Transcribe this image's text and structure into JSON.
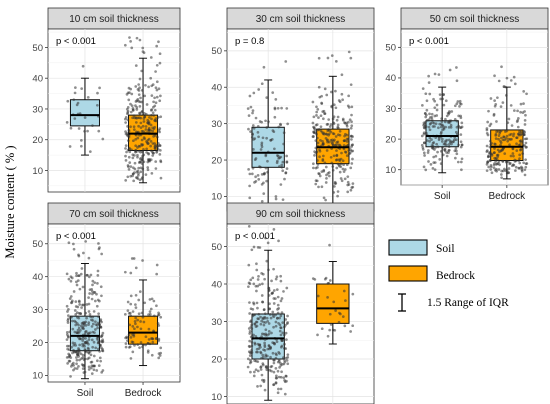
{
  "chart_data": {
    "type": "box",
    "ylabel": "Moisture content ( % )",
    "legend": [
      {
        "label": "Soil",
        "color": "#add8e6"
      },
      {
        "label": "Bedrock",
        "color": "#ffa500"
      },
      {
        "label": "1.5 Range of IQR",
        "symbol": "errorbar"
      }
    ],
    "categories": [
      "Soil",
      "Bedrock"
    ],
    "colors": {
      "Soil": "#add8e6",
      "Bedrock": "#ffa500",
      "strip": "#d9d9d9",
      "point": "#333333"
    },
    "panels": [
      {
        "title": "10 cm soil thickness",
        "pvalue": "p < 0.001",
        "ylim": [
          3,
          56
        ],
        "yticks": [
          10,
          20,
          30,
          40,
          50
        ],
        "show_xlabels": false,
        "boxes": [
          {
            "group": "Soil",
            "lower_whisker": 15,
            "q1": 24.5,
            "median": 28,
            "q3": 33,
            "upper_whisker": 40,
            "n_points": 30
          },
          {
            "group": "Bedrock",
            "lower_whisker": 6,
            "q1": 16.5,
            "median": 22,
            "q3": 28,
            "upper_whisker": 46.5,
            "n_points": 300
          }
        ]
      },
      {
        "title": "30 cm soil thickness",
        "pvalue": "p = 0.8",
        "ylim": [
          6,
          56
        ],
        "yticks": [
          10,
          20,
          30,
          40,
          50
        ],
        "show_xlabels": false,
        "boxes": [
          {
            "group": "Soil",
            "lower_whisker": 8,
            "q1": 18,
            "median": 22,
            "q3": 29,
            "upper_whisker": 42,
            "n_points": 110
          },
          {
            "group": "Bedrock",
            "lower_whisker": 8,
            "q1": 19,
            "median": 23.5,
            "q3": 28.5,
            "upper_whisker": 43,
            "n_points": 260
          }
        ]
      },
      {
        "title": "50 cm soil thickness",
        "pvalue": "p < 0.001",
        "ylim": [
          5,
          56
        ],
        "yticks": [
          10,
          20,
          30,
          40,
          50
        ],
        "show_xlabels": true,
        "boxes": [
          {
            "group": "Soil",
            "lower_whisker": 9,
            "q1": 17.5,
            "median": 21,
            "q3": 26,
            "upper_whisker": 37,
            "n_points": 200
          },
          {
            "group": "Bedrock",
            "lower_whisker": 7,
            "q1": 13,
            "median": 17.5,
            "q3": 23,
            "upper_whisker": 37,
            "n_points": 220
          }
        ]
      },
      {
        "title": "70 cm soil thickness",
        "pvalue": "p < 0.001",
        "ylim": [
          8,
          56
        ],
        "yticks": [
          10,
          20,
          30,
          40,
          50
        ],
        "show_xlabels": true,
        "boxes": [
          {
            "group": "Soil",
            "lower_whisker": 9,
            "q1": 17.5,
            "median": 22,
            "q3": 28,
            "upper_whisker": 44,
            "n_points": 300
          },
          {
            "group": "Bedrock",
            "lower_whisker": 13,
            "q1": 19.5,
            "median": 23,
            "q3": 28,
            "upper_whisker": 39,
            "n_points": 100
          }
        ]
      },
      {
        "title": "90 cm soil thickness",
        "pvalue": "p < 0.001",
        "ylim": [
          8,
          56
        ],
        "yticks": [
          10,
          20,
          30,
          40,
          50
        ],
        "show_xlabels": true,
        "boxes": [
          {
            "group": "Soil",
            "lower_whisker": 9,
            "q1": 20,
            "median": 25.5,
            "q3": 32,
            "upper_whisker": 49,
            "n_points": 300
          },
          {
            "group": "Bedrock",
            "lower_whisker": 24,
            "q1": 29.5,
            "median": 33.5,
            "q3": 40,
            "upper_whisker": 46,
            "n_points": 30
          }
        ]
      }
    ]
  }
}
